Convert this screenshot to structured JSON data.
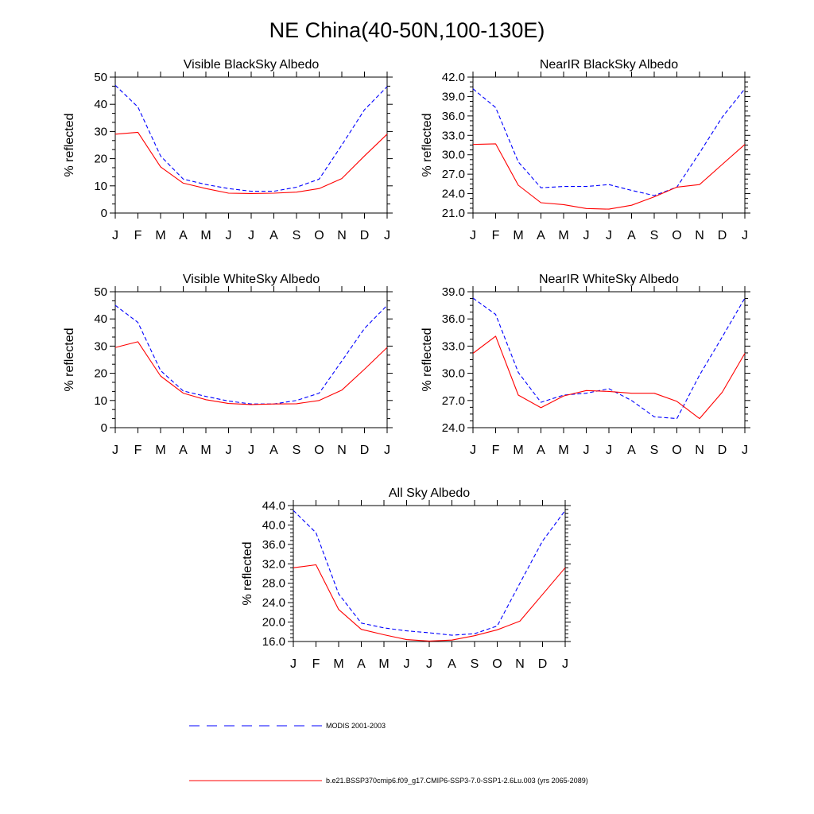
{
  "page": {
    "title": "NE China(40-50N,100-130E)"
  },
  "legend": {
    "items": [
      {
        "label": "MODIS 2001-2003",
        "color": "#0000ff",
        "dash": "dashed"
      },
      {
        "label": "b.e21.BSSP370cmip6.f09_g17.CMIP6-SSP3-7.0-SSP1-2.6Lu.003 (yrs 2065-2089)",
        "color": "#ff0000",
        "dash": "solid"
      }
    ]
  },
  "chart_data": [
    {
      "type": "line",
      "title": "Visible BlackSky Albedo",
      "ylabel": "% reflected",
      "categories": [
        "J",
        "F",
        "M",
        "A",
        "M",
        "J",
        "J",
        "A",
        "S",
        "O",
        "N",
        "D",
        "J"
      ],
      "ylim": [
        0,
        50
      ],
      "yticks": [
        "0",
        "10",
        "20",
        "30",
        "40",
        "50"
      ],
      "series": [
        {
          "name": "MODIS 2001-2003",
          "color": "#0000ff",
          "dash": "dashed",
          "values": [
            47,
            39,
            21,
            12.5,
            10.5,
            9,
            8,
            8,
            9.5,
            12.5,
            25,
            38,
            46.5
          ]
        },
        {
          "name": "b.e21.BSSP370cmip6.f09_g17.CMIP6-SSP3-7.0-SSP1-2.6Lu.003 (yrs 2065-2089)",
          "color": "#ff0000",
          "dash": "solid",
          "values": [
            29,
            29.7,
            17,
            11,
            9,
            7.3,
            7.2,
            7.3,
            7.7,
            9,
            12.7,
            21,
            29
          ]
        }
      ]
    },
    {
      "type": "line",
      "title": "NearIR BlackSky Albedo",
      "ylabel": "% reflected",
      "categories": [
        "J",
        "F",
        "M",
        "A",
        "M",
        "J",
        "J",
        "A",
        "S",
        "O",
        "N",
        "D",
        "J"
      ],
      "ylim": [
        21,
        42
      ],
      "yticks": [
        "21.0",
        "24.0",
        "27.0",
        "30.0",
        "33.0",
        "36.0",
        "39.0",
        "42.0"
      ],
      "series": [
        {
          "name": "MODIS 2001-2003",
          "color": "#0000ff",
          "dash": "dashed",
          "values": [
            40.2,
            37.3,
            28.9,
            24.9,
            25.1,
            25.1,
            25.4,
            24.5,
            23.7,
            25,
            30.3,
            35.8,
            40.2
          ]
        },
        {
          "name": "b.e21.BSSP370cmip6.f09_g17.CMIP6-SSP3-7.0-SSP1-2.6Lu.003 (yrs 2065-2089)",
          "color": "#ff0000",
          "dash": "solid",
          "values": [
            31.6,
            31.7,
            25.3,
            22.6,
            22.3,
            21.7,
            21.6,
            22.2,
            23.5,
            25,
            25.4,
            28.5,
            31.6
          ]
        }
      ]
    },
    {
      "type": "line",
      "title": "Visible WhiteSky Albedo",
      "ylabel": "% reflected",
      "categories": [
        "J",
        "F",
        "M",
        "A",
        "M",
        "J",
        "J",
        "A",
        "S",
        "O",
        "N",
        "D",
        "J"
      ],
      "ylim": [
        0,
        50
      ],
      "yticks": [
        "0",
        "10",
        "20",
        "30",
        "40",
        "50"
      ],
      "series": [
        {
          "name": "MODIS 2001-2003",
          "color": "#0000ff",
          "dash": "dashed",
          "values": [
            45,
            38.7,
            21,
            13.5,
            11.5,
            9.8,
            8.7,
            8.7,
            10,
            12.7,
            24.5,
            36.5,
            45
          ]
        },
        {
          "name": "b.e21.BSSP370cmip6.f09_g17.CMIP6-SSP3-7.0-SSP1-2.6Lu.003 (yrs 2065-2089)",
          "color": "#ff0000",
          "dash": "solid",
          "values": [
            29.5,
            31.6,
            19,
            12.7,
            10.3,
            8.9,
            8.5,
            8.7,
            8.8,
            10,
            13.8,
            21.5,
            29.5
          ]
        }
      ]
    },
    {
      "type": "line",
      "title": "NearIR WhiteSky Albedo",
      "ylabel": "% reflected",
      "categories": [
        "J",
        "F",
        "M",
        "A",
        "M",
        "J",
        "J",
        "A",
        "S",
        "O",
        "N",
        "D",
        "J"
      ],
      "ylim": [
        24,
        39
      ],
      "yticks": [
        "24.0",
        "27.0",
        "30.0",
        "33.0",
        "36.0",
        "39.0"
      ],
      "series": [
        {
          "name": "MODIS 2001-2003",
          "color": "#0000ff",
          "dash": "dashed",
          "values": [
            38.3,
            36.5,
            30.1,
            26.8,
            27.6,
            27.8,
            28.3,
            27,
            25.2,
            25,
            29.8,
            34,
            38.3
          ]
        },
        {
          "name": "b.e21.BSSP370cmip6.f09_g17.CMIP6-SSP3-7.0-SSP1-2.6Lu.003 (yrs 2065-2089)",
          "color": "#ff0000",
          "dash": "solid",
          "values": [
            32.2,
            34.1,
            27.6,
            26.2,
            27.5,
            28.1,
            28,
            27.8,
            27.8,
            26.9,
            25,
            27.9,
            32.2
          ]
        }
      ]
    },
    {
      "type": "line",
      "title": "All Sky Albedo",
      "ylabel": "% reflected",
      "categories": [
        "J",
        "F",
        "M",
        "A",
        "M",
        "J",
        "J",
        "A",
        "S",
        "O",
        "N",
        "D",
        "J"
      ],
      "ylim": [
        16,
        44
      ],
      "yticks": [
        "16.0",
        "20.0",
        "24.0",
        "28.0",
        "32.0",
        "36.0",
        "40.0",
        "44.0"
      ],
      "series": [
        {
          "name": "MODIS 2001-2003",
          "color": "#0000ff",
          "dash": "dashed",
          "values": [
            43,
            38.4,
            25.8,
            19.8,
            18.8,
            18.2,
            17.8,
            17.3,
            17.6,
            19.2,
            28,
            36.7,
            43
          ]
        },
        {
          "name": "b.e21.BSSP370cmip6.f09_g17.CMIP6-SSP3-7.0-SSP1-2.6Lu.003 (yrs 2065-2089)",
          "color": "#ff0000",
          "dash": "solid",
          "values": [
            31.2,
            31.8,
            22.6,
            18.5,
            17.4,
            16.4,
            16.1,
            16.3,
            17.2,
            18.4,
            20.2,
            25.7,
            31.2
          ]
        }
      ]
    }
  ]
}
